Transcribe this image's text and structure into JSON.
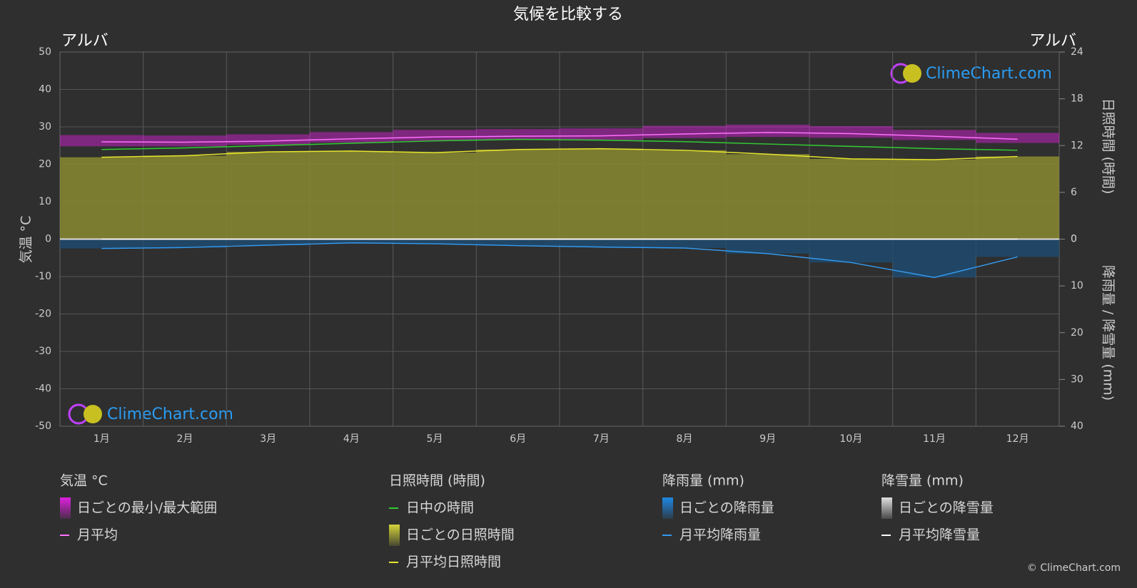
{
  "chart_data": {
    "type": "line",
    "title": "気候を比較する",
    "location_left": "アルバ",
    "location_right": "アルバ",
    "logo_text": "ClimeChart.com",
    "copyright": "© ClimeChart.com",
    "ylabel": "気温 °C",
    "y2label": "日照時間 (時間)",
    "y3label": "降雨量 / 降雪量 (mm)",
    "categories": [
      "1月",
      "2月",
      "3月",
      "4月",
      "5月",
      "6月",
      "7月",
      "8月",
      "9月",
      "10月",
      "11月",
      "12月"
    ],
    "ylim": [
      -50,
      50
    ],
    "yticks": [
      -50,
      -40,
      -30,
      -20,
      -10,
      0,
      10,
      20,
      30,
      40,
      50
    ],
    "y2lim": [
      0,
      24
    ],
    "y2ticks": [
      0,
      6,
      12,
      18,
      24
    ],
    "y3lim": [
      0,
      40
    ],
    "y3ticks": [
      0,
      10,
      20,
      30,
      40
    ],
    "y3_reversed": true,
    "grid": true,
    "groups": [
      {
        "title": "気温 °C",
        "series": [
          {
            "name": "日ごとの最小/最大範囲",
            "style": "band",
            "color": "#e020e0",
            "min": [
              24.8,
              24.8,
              25.2,
              25.8,
              26.3,
              26.5,
              26.5,
              27.0,
              27.3,
              27.1,
              26.5,
              25.7
            ],
            "max": [
              27.8,
              27.7,
              28.0,
              28.6,
              29.2,
              29.4,
              29.6,
              30.3,
              30.6,
              30.2,
              29.2,
              28.4
            ]
          },
          {
            "name": "月平均",
            "style": "line",
            "color": "#ff70ff",
            "values": [
              26.0,
              25.9,
              26.2,
              26.8,
              27.3,
              27.5,
              27.6,
              28.1,
              28.5,
              28.2,
              27.5,
              26.7
            ]
          }
        ]
      },
      {
        "title": "日照時間 (時間)",
        "series": [
          {
            "name": "日中の時間",
            "style": "line",
            "color": "#33cc33",
            "axis": "y2",
            "values": [
              11.5,
              11.7,
              12.0,
              12.3,
              12.6,
              12.8,
              12.7,
              12.5,
              12.2,
              11.9,
              11.6,
              11.4
            ]
          },
          {
            "name": "日ごとの日照時間",
            "style": "bar",
            "color": "#d4d43a"
          },
          {
            "name": "月平均日照時間",
            "style": "line",
            "color": "#e6e62e",
            "axis": "y2",
            "area_color": "#8a8a30",
            "values": [
              10.5,
              10.7,
              11.2,
              11.3,
              11.1,
              11.5,
              11.6,
              11.4,
              10.9,
              10.3,
              10.2,
              10.6
            ]
          }
        ]
      },
      {
        "title": "降雨量 (mm)",
        "series": [
          {
            "name": "日ごとの降雨量",
            "style": "bar",
            "color": "#1e88e5"
          },
          {
            "name": "月平均降雨量",
            "style": "line",
            "color": "#3399ee",
            "axis": "y3",
            "area_color": "#1f4a6e",
            "values": [
              2.0,
              1.8,
              1.3,
              0.8,
              1.0,
              1.4,
              1.7,
              1.9,
              3.1,
              5.0,
              8.2,
              3.8
            ]
          }
        ]
      },
      {
        "title": "降雪量 (mm)",
        "series": [
          {
            "name": "日ごとの降雪量",
            "style": "bar",
            "color": "#e0e0e0"
          },
          {
            "name": "月平均降雪量",
            "style": "line",
            "color": "#ffffff",
            "axis": "y3",
            "values": [
              0,
              0,
              0,
              0,
              0,
              0,
              0,
              0,
              0,
              0,
              0,
              0
            ]
          }
        ]
      }
    ]
  }
}
